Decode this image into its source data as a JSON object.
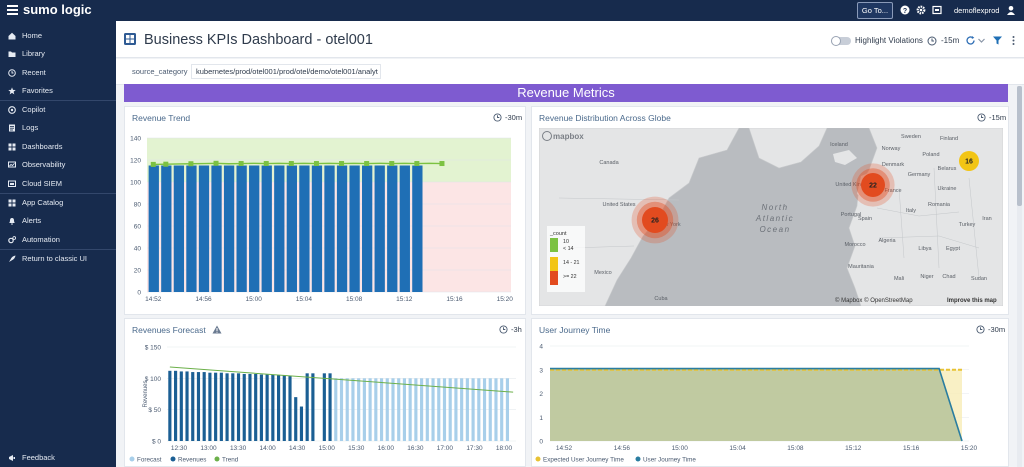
{
  "topbar": {
    "logo": "sumo logic",
    "goto_label": "Go To...",
    "user": "demoflexprod"
  },
  "sidebar": {
    "items": [
      {
        "label": "Home",
        "icon": "home-icon"
      },
      {
        "label": "Library",
        "icon": "folder-icon"
      },
      {
        "label": "Recent",
        "icon": "clock-icon"
      },
      {
        "label": "Favorites",
        "icon": "star-icon"
      },
      {
        "label": "Copilot",
        "icon": "copilot-icon"
      },
      {
        "label": "Logs",
        "icon": "logs-icon"
      },
      {
        "label": "Dashboards",
        "icon": "dashboards-icon"
      },
      {
        "label": "Observability",
        "icon": "observability-icon"
      },
      {
        "label": "Cloud SIEM",
        "icon": "siem-icon"
      },
      {
        "label": "App Catalog",
        "icon": "grid-icon"
      },
      {
        "label": "Alerts",
        "icon": "bell-icon"
      },
      {
        "label": "Automation",
        "icon": "gears-icon"
      },
      {
        "label": "Return to classic UI",
        "icon": "rocket-icon"
      }
    ],
    "feedback": "Feedback"
  },
  "header": {
    "title": "Business KPIs Dashboard - otel001",
    "highlight_label": "Highlight Violations",
    "time_range": "-15m"
  },
  "filter": {
    "key": "source_category",
    "value": "kubernetes/prod/otel001/prod/otel/demo/otel001/analyt"
  },
  "section_title": "Revenue Metrics",
  "panels": {
    "revenue_trend": {
      "title": "Revenue Trend",
      "range": "-30m"
    },
    "revenue_map": {
      "title": "Revenue Distribution Across Globe",
      "range": "-15m"
    },
    "forecast": {
      "title": "Revenues Forecast",
      "range": "-3h"
    },
    "journey": {
      "title": "User Journey Time",
      "range": "-30m"
    }
  },
  "colors": {
    "bar_blue": "#1f6fb5",
    "trend_green": "#7cc242",
    "forecast_light": "#a8cfea",
    "revenues_dark": "#1b5f94",
    "journey_fill": "#b6c39a",
    "expected_yellow": "#e8c233",
    "journey_line": "#2a7da0",
    "purple_section": "#7e5bd0"
  },
  "map": {
    "mapbox_logo": "mapbox",
    "attribution": "© Mapbox © OpenStreetMap",
    "improve": "Improve this map",
    "ocean": [
      "North",
      "Atlantic",
      "Ocean"
    ],
    "place_labels": [
      "Canada",
      "United States",
      "New York",
      "Mexico",
      "Cuba",
      "Iceland",
      "Sweden",
      "Finland",
      "Norway",
      "Denmark",
      "Belarus",
      "United Kingdom",
      "Germany",
      "Ukraine",
      "France",
      "Spain",
      "Italy",
      "Romania",
      "Turkey",
      "Algeria",
      "Libya",
      "Egypt",
      "Iran",
      "Mali",
      "Niger",
      "Chad",
      "Sudan",
      "Mauritania",
      "Portugal",
      "Morocco",
      "Poland"
    ],
    "clusters": [
      {
        "label": "26"
      },
      {
        "label": "22"
      },
      {
        "label": "16"
      }
    ],
    "legend": {
      "title": "_count",
      "items": [
        {
          "label": "10",
          "color": "#7cc242"
        },
        {
          "label": "< 14",
          "color": "#7cc242"
        },
        {
          "label": "14 - 21",
          "color": "#f2c515"
        },
        {
          "label": ">= 22",
          "color": "#e24b1f"
        }
      ]
    }
  },
  "chart_data": [
    {
      "type": "bar",
      "title": "Revenue Trend",
      "categories": [
        "14:52",
        "14:53",
        "14:54",
        "14:55",
        "14:56",
        "14:57",
        "14:58",
        "14:59",
        "15:00",
        "15:01",
        "15:02",
        "15:03",
        "15:04",
        "15:05",
        "15:06",
        "15:07",
        "15:08",
        "15:09",
        "15:10",
        "15:11",
        "15:12",
        "15:13",
        "15:14",
        "15:15",
        "15:16",
        "15:17",
        "15:18",
        "15:19",
        "15:20"
      ],
      "x_tick_labels": [
        "14:52",
        "14:56",
        "15:00",
        "15:04",
        "15:08",
        "15:12",
        "15:16",
        "15:20"
      ],
      "series": [
        {
          "name": "Revenue",
          "values": [
            115,
            115,
            115,
            115,
            115,
            115,
            115,
            115,
            115,
            115,
            115,
            115,
            115,
            115,
            115,
            115,
            115,
            115,
            115,
            115,
            115,
            115,
            115,
            115,
            115,
            115,
            115,
            115,
            115
          ]
        },
        {
          "name": "Trend",
          "values": [
            116,
            116.2,
            116.4,
            116.6,
            116.8,
            117,
            116.6,
            116.8,
            117,
            116.8,
            117,
            116.8,
            117,
            116.8,
            117,
            116.8,
            117,
            116.8,
            117,
            116.8,
            117,
            116.8,
            117,
            116.8,
            117,
            116.8,
            117,
            117,
            117
          ]
        }
      ],
      "ylim": [
        0,
        140
      ],
      "yticks": [
        0,
        20,
        40,
        60,
        80,
        100,
        120,
        140
      ],
      "threshold_good": 100
    },
    {
      "type": "bar",
      "title": "Revenues Forecast",
      "ylabel": "Revenues",
      "ylim": [
        0,
        150
      ],
      "yticks": [
        "$ 0",
        "$ 50",
        "$ 100",
        "$ 150"
      ],
      "x_tick_labels": [
        "12:30",
        "13:00",
        "13:30",
        "14:00",
        "14:30",
        "15:00",
        "15:30",
        "16:00",
        "16:30",
        "17:00",
        "17:30",
        "18:00"
      ],
      "legend": [
        "Forecast",
        "Revenues",
        "Trend"
      ],
      "series": [
        {
          "name": "Revenues",
          "values": [
            112,
            112,
            111,
            111,
            110,
            110,
            110,
            109,
            109,
            109,
            108,
            108,
            108,
            107,
            107,
            107,
            106,
            106,
            106,
            105,
            105,
            104,
            70,
            55,
            108,
            108,
            0,
            108,
            108
          ]
        },
        {
          "name": "Forecast",
          "values": [
            0,
            0,
            0,
            0,
            0,
            0,
            0,
            0,
            0,
            0,
            0,
            0,
            0,
            0,
            0,
            0,
            0,
            0,
            0,
            0,
            0,
            0,
            0,
            0,
            0,
            0,
            0,
            0,
            0,
            100,
            100,
            100,
            100,
            100,
            100,
            100,
            100,
            100,
            100,
            100,
            100,
            100,
            100,
            100,
            100,
            100,
            100,
            100,
            100,
            100,
            100,
            100,
            100,
            100,
            100,
            100,
            100,
            100,
            100,
            100
          ]
        },
        {
          "name": "Trend",
          "start": 118,
          "end": 78
        }
      ]
    },
    {
      "type": "area",
      "title": "User Journey Time",
      "ylim": [
        0,
        4
      ],
      "yticks": [
        0,
        1,
        2,
        3,
        4
      ],
      "x_tick_labels": [
        "14:52",
        "14:56",
        "15:00",
        "15:04",
        "15:08",
        "15:12",
        "15:16",
        "15:20"
      ],
      "legend": [
        "Expected User Journey Time",
        "User Journey Time"
      ],
      "series": [
        {
          "name": "Expected User Journey Time",
          "x": [
            "14:52",
            "15:20"
          ],
          "values": [
            3,
            3
          ]
        },
        {
          "name": "User Journey Time",
          "x": [
            "14:52",
            "15:18",
            "15:20"
          ],
          "values": [
            3.05,
            3.05,
            0
          ]
        }
      ]
    }
  ]
}
